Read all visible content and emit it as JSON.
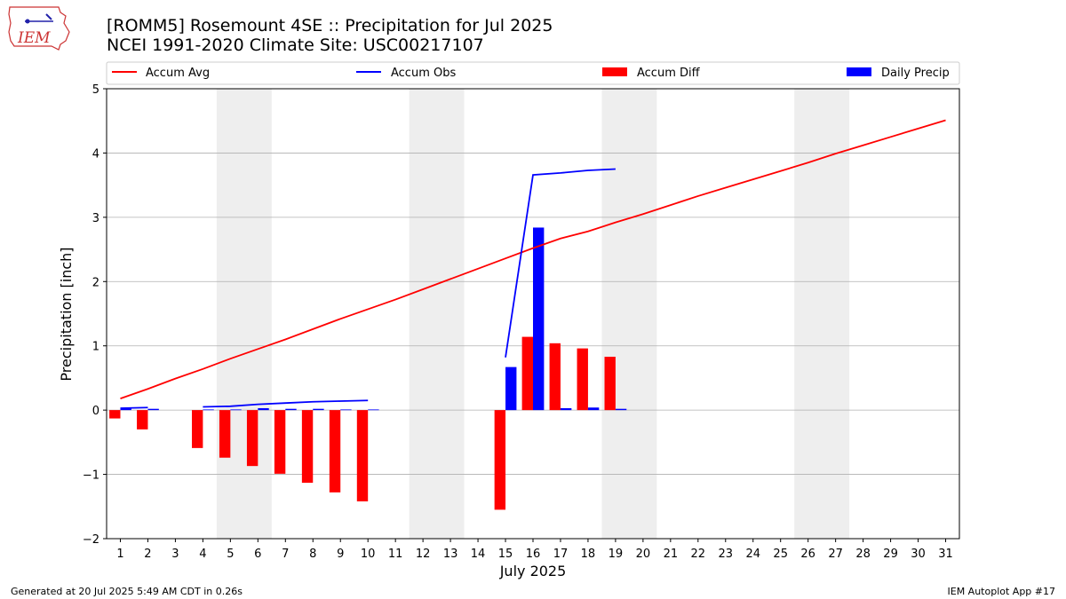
{
  "header": {
    "title_line1": "[ROMM5] Rosemount 4SE :: Precipitation for Jul 2025",
    "title_line2": "NCEI 1991-2020 Climate Site: USC00217107"
  },
  "logo": {
    "text": "IEM"
  },
  "footer": {
    "left": "Generated at 20 Jul 2025 5:49 AM CDT in 0.26s",
    "right": "IEM Autoplot App #17"
  },
  "chart_data": {
    "type": "bar",
    "xlabel": "July 2025",
    "ylabel": "Precipitation [inch]",
    "xlim": [
      0.5,
      31.5
    ],
    "ylim": [
      -2.0,
      5.0
    ],
    "x": [
      1,
      2,
      3,
      4,
      5,
      6,
      7,
      8,
      9,
      10,
      11,
      12,
      13,
      14,
      15,
      16,
      17,
      18,
      19,
      20,
      21,
      22,
      23,
      24,
      25,
      26,
      27,
      28,
      29,
      30,
      31
    ],
    "x_tick_labels": [
      "1",
      "2",
      "3",
      "4",
      "5",
      "6",
      "7",
      "8",
      "9",
      "10",
      "11",
      "12",
      "13",
      "14",
      "15",
      "16",
      "17",
      "18",
      "19",
      "20",
      "21",
      "22",
      "23",
      "24",
      "25",
      "26",
      "27",
      "28",
      "29",
      "30",
      "31"
    ],
    "y_ticks": [
      -2,
      -1,
      0,
      1,
      2,
      3,
      4,
      5
    ],
    "y_tick_labels": [
      "−2",
      "−1",
      "0",
      "1",
      "2",
      "3",
      "4",
      "5"
    ],
    "grid": "horizontal",
    "legend_position": "top",
    "weekend_bands": [
      [
        4.5,
        6.5
      ],
      [
        11.5,
        13.5
      ],
      [
        18.5,
        20.5
      ],
      [
        25.5,
        27.5
      ]
    ],
    "series": [
      {
        "name": "Accum Avg",
        "kind": "line",
        "color": "#ff0000",
        "x": [
          1,
          2,
          3,
          4,
          5,
          6,
          7,
          8,
          9,
          10,
          11,
          12,
          13,
          14,
          15,
          16,
          17,
          18,
          19,
          20,
          21,
          22,
          23,
          24,
          25,
          26,
          27,
          28,
          29,
          30,
          31
        ],
        "values": [
          0.18,
          0.33,
          0.49,
          0.64,
          0.8,
          0.95,
          1.1,
          1.26,
          1.42,
          1.57,
          1.72,
          1.88,
          2.04,
          2.2,
          2.36,
          2.52,
          2.67,
          2.78,
          2.92,
          3.05,
          3.19,
          3.33,
          3.46,
          3.59,
          3.72,
          3.85,
          3.99,
          4.12,
          4.25,
          4.38,
          4.51
        ]
      },
      {
        "name": "Accum Obs",
        "kind": "line",
        "color": "#0000ff",
        "segments": [
          {
            "x": [
              1,
              2
            ],
            "values": [
              0.03,
              0.04
            ]
          },
          {
            "x": [
              4,
              5,
              6,
              7,
              8,
              9,
              10
            ],
            "values": [
              0.05,
              0.06,
              0.09,
              0.11,
              0.13,
              0.14,
              0.15
            ]
          },
          {
            "x": [
              15,
              16,
              17,
              18,
              19
            ],
            "values": [
              0.82,
              3.66,
              3.69,
              3.73,
              3.75
            ]
          }
        ]
      },
      {
        "name": "Accum Diff",
        "kind": "bar",
        "color": "#ff0000",
        "x": [
          1,
          2,
          4,
          5,
          6,
          7,
          8,
          9,
          10,
          15,
          16,
          17,
          18,
          19
        ],
        "values": [
          -0.13,
          -0.3,
          -0.59,
          -0.74,
          -0.87,
          -0.99,
          -1.13,
          -1.28,
          -1.42,
          -1.55,
          1.14,
          1.04,
          0.96,
          0.83
        ]
      },
      {
        "name": "Daily Precip",
        "kind": "bar",
        "color": "#0000ff",
        "x": [
          1,
          2,
          4,
          5,
          6,
          7,
          8,
          9,
          10,
          15,
          16,
          17,
          18,
          19
        ],
        "values": [
          0.03,
          0.02,
          0.01,
          0.01,
          0.03,
          0.02,
          0.02,
          0.01,
          0.01,
          0.67,
          2.84,
          0.03,
          0.04,
          0.02
        ]
      }
    ]
  }
}
